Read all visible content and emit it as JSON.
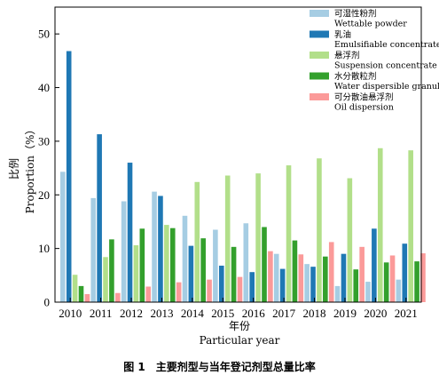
{
  "chart_data": {
    "type": "bar",
    "categories": [
      "2010",
      "2011",
      "2012",
      "2013",
      "2014",
      "2015",
      "2016",
      "2017",
      "2018",
      "2019",
      "2020",
      "2021"
    ],
    "ylim": [
      0,
      55
    ],
    "yticks": [
      0,
      10,
      20,
      30,
      40,
      50
    ],
    "xlabel_cn": "年份",
    "xlabel_en": "Particular year",
    "ylabel_cn": "比例",
    "ylabel_en": "Proportion（%）",
    "legend_position": "top-right",
    "grid": false,
    "series": [
      {
        "name_cn": "可湿性粉剂",
        "name_en": "Wettable powder",
        "color": "#a6cde3",
        "values": [
          24.3,
          19.4,
          18.8,
          20.6,
          16.1,
          13.5,
          14.7,
          9.0,
          7.1,
          3.0,
          3.8,
          4.2
        ]
      },
      {
        "name_cn": "乳油",
        "name_en": "Emulsifiable concentrate",
        "color": "#1f78b4",
        "values": [
          46.8,
          31.3,
          26.0,
          19.8,
          10.5,
          6.8,
          5.6,
          6.2,
          6.6,
          9.0,
          13.7,
          10.9
        ]
      },
      {
        "name_cn": "悬浮剂",
        "name_en": "Suspension concentrate",
        "color": "#b2df8a",
        "values": [
          5.1,
          8.4,
          10.6,
          14.4,
          22.4,
          23.6,
          24.0,
          25.5,
          26.8,
          23.1,
          28.7,
          28.3
        ]
      },
      {
        "name_cn": "水分散粒剂",
        "name_en": "Water dispersible granule",
        "color": "#33a02c",
        "values": [
          3.0,
          11.7,
          13.7,
          13.8,
          11.9,
          10.3,
          14.0,
          11.5,
          8.5,
          6.1,
          7.4,
          7.6
        ]
      },
      {
        "name_cn": "可分散油悬浮剂",
        "name_en": "Oil dispersion",
        "color": "#fb9a99",
        "values": [
          1.5,
          1.7,
          2.9,
          3.7,
          4.2,
          4.7,
          9.5,
          8.9,
          11.2,
          10.3,
          8.7,
          9.1
        ]
      }
    ]
  },
  "caption": "图 1　主要剂型与当年登记剂型总量比率"
}
